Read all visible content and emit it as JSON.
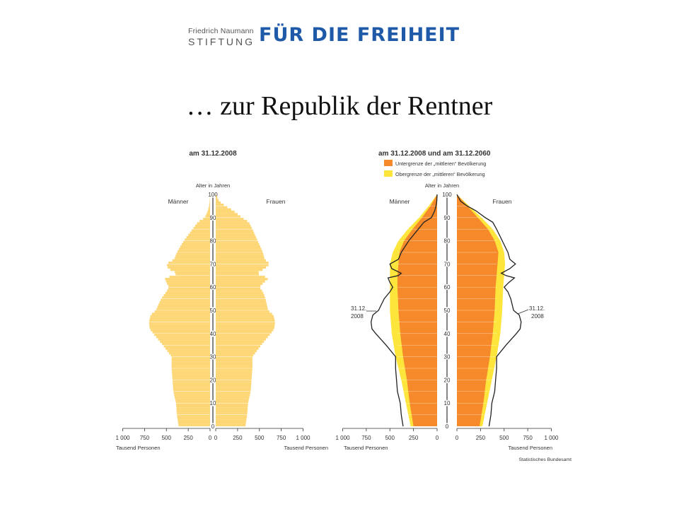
{
  "logo": {
    "line1": "Friedrich Naumann",
    "line2": "STIFTUNG",
    "tagline": "FÜR DIE FREIHEIT",
    "color": "#1f5aa8"
  },
  "slide": {
    "title": "… zur Republik der Rentner"
  },
  "colors": {
    "pyramid_2008": "#fdd676",
    "lower_2060": "#f68a2a",
    "upper_2060": "#fde53c",
    "outline": "#222222"
  },
  "chart_data": [
    {
      "type": "population-pyramid",
      "title": "am 31.12.2008",
      "age_axis_label": "Alter in Jahren",
      "left_label": "Männer",
      "right_label": "Frauen",
      "x_axis_label": "Tausend Personen",
      "age_ticks": [
        "0",
        "10",
        "20",
        "30",
        "40",
        "50",
        "60",
        "70",
        "80",
        "90",
        "100"
      ],
      "x_ticks_left": [
        "1 000",
        "750",
        "500",
        "250",
        "0"
      ],
      "x_ticks_right": [
        "0",
        "250",
        "500",
        "750",
        "1 000"
      ],
      "xlim": [
        0,
        1000
      ],
      "ylim": [
        0,
        100
      ],
      "ages": [
        0,
        5,
        10,
        15,
        20,
        25,
        30,
        35,
        40,
        42,
        45,
        48,
        50,
        55,
        58,
        60,
        62,
        64,
        65,
        66,
        68,
        70,
        72,
        75,
        80,
        85,
        88,
        90,
        93,
        95,
        97,
        100
      ],
      "men": [
        360,
        380,
        390,
        420,
        430,
        440,
        440,
        540,
        650,
        690,
        700,
        680,
        620,
        560,
        500,
        470,
        500,
        520,
        410,
        380,
        480,
        500,
        410,
        380,
        300,
        200,
        140,
        60,
        25,
        12,
        4,
        0
      ],
      "women": [
        340,
        360,
        370,
        400,
        410,
        420,
        420,
        520,
        630,
        670,
        680,
        660,
        600,
        570,
        540,
        500,
        550,
        610,
        520,
        470,
        560,
        620,
        560,
        540,
        480,
        420,
        380,
        300,
        200,
        110,
        40,
        0
      ]
    },
    {
      "type": "population-pyramid",
      "title": "am 31.12.2008 und am 31.12.2060",
      "age_axis_label": "Alter in Jahren",
      "left_label": "Männer",
      "right_label": "Frauen",
      "x_axis_label": "Tausend Personen",
      "source": "Statistisches Bundesamt",
      "age_ticks": [
        "0",
        "10",
        "20",
        "30",
        "40",
        "50",
        "60",
        "70",
        "80",
        "90",
        "100"
      ],
      "x_ticks_left": [
        "1 000",
        "750",
        "500",
        "250",
        "0"
      ],
      "x_ticks_right": [
        "0",
        "250",
        "500",
        "750",
        "1 000"
      ],
      "xlim": [
        0,
        1000
      ],
      "ylim": [
        0,
        100
      ],
      "legend": [
        {
          "label": "Untergrenze der „mittleren“ Bevölkerung",
          "color": "#f68a2a"
        },
        {
          "label": "Obergrenze der „mittleren“ Bevölkerung",
          "color": "#fde53c"
        }
      ],
      "annotation_left": [
        "31.12.",
        "2008"
      ],
      "annotation_right": [
        "31.12.",
        "2008"
      ],
      "ages": [
        0,
        10,
        20,
        30,
        40,
        50,
        60,
        65,
        70,
        75,
        80,
        85,
        90,
        95,
        100
      ],
      "lower_men": [
        250,
        290,
        320,
        360,
        390,
        410,
        420,
        420,
        410,
        400,
        350,
        260,
        160,
        70,
        0
      ],
      "upper_men": [
        280,
        330,
        380,
        440,
        480,
        500,
        500,
        500,
        500,
        470,
        410,
        310,
        190,
        90,
        0
      ],
      "lower_women": [
        240,
        280,
        310,
        350,
        380,
        400,
        410,
        420,
        430,
        440,
        400,
        330,
        220,
        110,
        0
      ],
      "upper_women": [
        270,
        320,
        370,
        420,
        460,
        480,
        490,
        500,
        510,
        500,
        460,
        380,
        260,
        130,
        0
      ],
      "outline_ages": [
        0,
        5,
        10,
        15,
        20,
        25,
        30,
        35,
        40,
        42,
        45,
        48,
        50,
        55,
        58,
        60,
        62,
        64,
        65,
        66,
        68,
        70,
        72,
        75,
        80,
        85,
        88,
        90,
        93,
        95,
        97,
        100
      ],
      "outline_men": [
        360,
        380,
        390,
        420,
        430,
        440,
        440,
        540,
        650,
        690,
        700,
        680,
        620,
        560,
        500,
        470,
        500,
        520,
        410,
        380,
        480,
        500,
        410,
        380,
        300,
        200,
        140,
        60,
        25,
        12,
        4,
        0
      ],
      "outline_women": [
        340,
        360,
        370,
        400,
        410,
        420,
        420,
        520,
        630,
        670,
        680,
        660,
        600,
        570,
        540,
        500,
        550,
        610,
        520,
        470,
        560,
        620,
        560,
        540,
        480,
        420,
        380,
        300,
        200,
        110,
        40,
        0
      ]
    }
  ]
}
